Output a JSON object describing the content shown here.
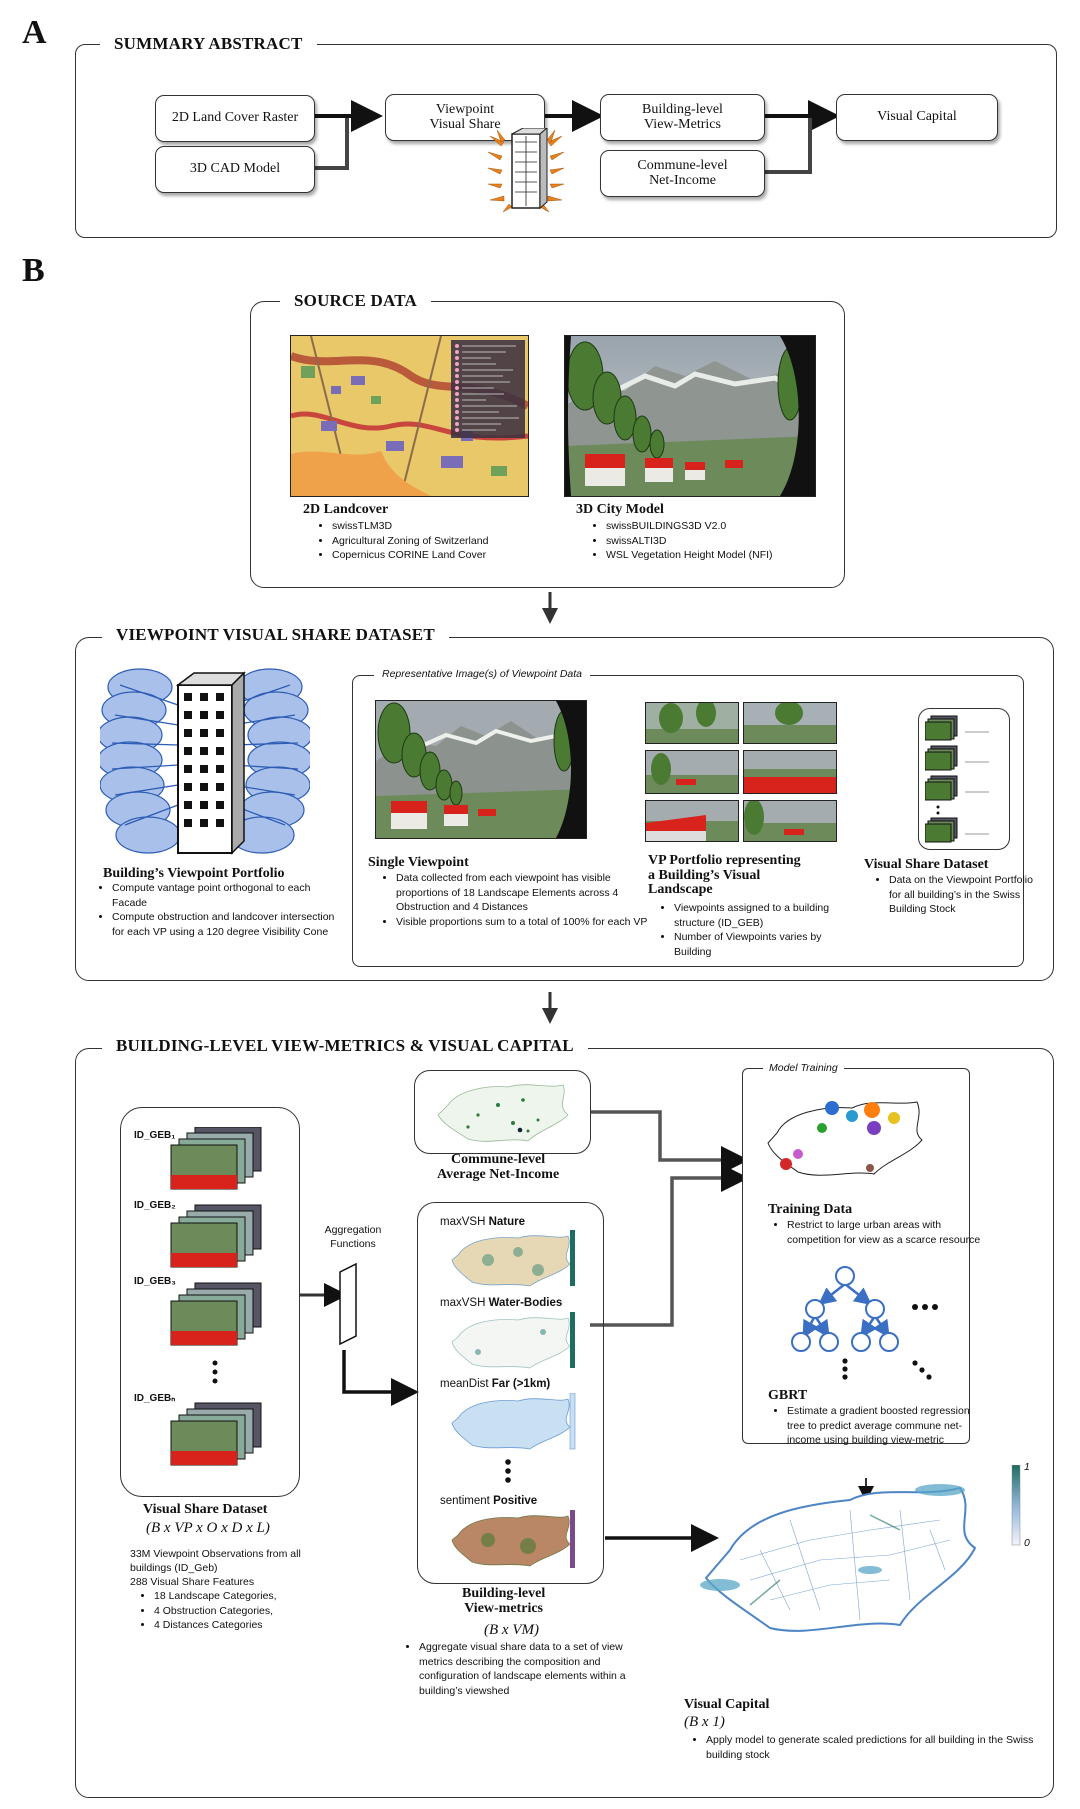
{
  "panels": {
    "a": "A",
    "b": "B"
  },
  "summary": {
    "title": "SUMMARY ABSTRACT",
    "boxes": {
      "landcover": "2D Land Cover Raster",
      "cad": "3D CAD Model",
      "viewpoint": "Viewpoint\nVisual Share",
      "building_metrics": "Building-level\nView-Metrics",
      "commune_income": "Commune-level\nNet-Income",
      "visual_capital": "Visual Capital"
    }
  },
  "source": {
    "title": "SOURCE DATA",
    "landcover": {
      "caption": "2D Landcover",
      "items": [
        "swissTLM3D",
        "Agricultural Zoning of Switzerland",
        "Copernicus CORINE Land Cover"
      ]
    },
    "city": {
      "caption": "3D City Model",
      "items": [
        "swissBUILDINGS3D V2.0",
        "swissALTI3D",
        "WSL Vegetation Height Model (NFI)"
      ]
    }
  },
  "vvs": {
    "title": "VIEWPOINT VISUAL SHARE DATASET",
    "portfolio": {
      "caption": "Building’s Viewpoint Portfolio",
      "items": [
        "Compute vantage point orthogonal to each Facade",
        "Compute obstruction and landcover intersection for each VP using a 120 degree Visibility Cone"
      ]
    },
    "rep_label": "Representative Image(s) of Viewpoint Data",
    "single": {
      "caption": "Single Viewpoint",
      "items": [
        "Data collected from each viewpoint has visible proportions of 18 Landscape Elements across 4 Obstruction and 4 Distances",
        "Visible proportions sum to a total of 100% for each VP"
      ]
    },
    "vpport": {
      "caption": "VP Portfolio representing\na Building’s Visual\nLandscape",
      "items": [
        "Viewpoints assigned to a building structure (ID_GEB)",
        "Number of Viewpoints varies by Building"
      ]
    },
    "vsd": {
      "caption": "Visual Share Dataset",
      "items": [
        "Data on the Viewpoint Portfolio for all building’s in the Swiss Building Stock"
      ]
    }
  },
  "bvm": {
    "title": "BUILDING-LEVEL VIEW-METRICS & VISUAL CAPITAL",
    "id_labels": [
      "ID_GEB₁",
      "ID_GEB₂",
      "ID_GEB₃",
      "ID_GEBₙ"
    ],
    "vsd_caption": "Visual Share Dataset",
    "vsd_formula": "(B x VP x O x D x L)",
    "vsd_text1": "33M Viewpoint Observations from all buildings (ID_Geb)",
    "vsd_text2": "288 Visual Share Features",
    "vsd_items": [
      "18 Landscape Categories,",
      "4 Obstruction Categories,",
      "4 Distances Categories"
    ],
    "aggregation": "Aggregation\nFunctions",
    "commune_caption": "Commune-level\nAverage Net-Income",
    "metrics": [
      {
        "prefix": "maxVSH ",
        "name": "Nature"
      },
      {
        "prefix": "maxVSH ",
        "name": "Water-Bodies"
      },
      {
        "prefix": "meanDist ",
        "name": "Far (>1km)"
      },
      {
        "prefix": "sentiment ",
        "name": "Positive"
      }
    ],
    "metrics_caption": "Building-level\nView-metrics",
    "metrics_formula": "(B x VM)",
    "metrics_items": [
      "Aggregate visual share data to a set of view metrics describing the composition and configuration of landscape elements within a building’s viewshed"
    ],
    "model_label": "Model Training",
    "training_caption": "Training Data",
    "training_items": [
      "Restrict to large urban areas with competition for view as a scarce resource"
    ],
    "gbrt_caption": "GBRT",
    "gbrt_items": [
      "Estimate a gradient boosted regression tree to predict average commune net-income using building view-metric"
    ],
    "vc_caption": "Visual Capital",
    "vc_formula": "(B x 1)",
    "vc_items": [
      "Apply model to generate scaled predictions for all building in the Swiss building stock"
    ],
    "scale_max": "1",
    "scale_min": "0"
  },
  "colors": {
    "accent_orange": "#e8801c",
    "accent_blue": "#4a7fd0",
    "roof_red": "#d8231c",
    "teal": "#1e6d63"
  }
}
